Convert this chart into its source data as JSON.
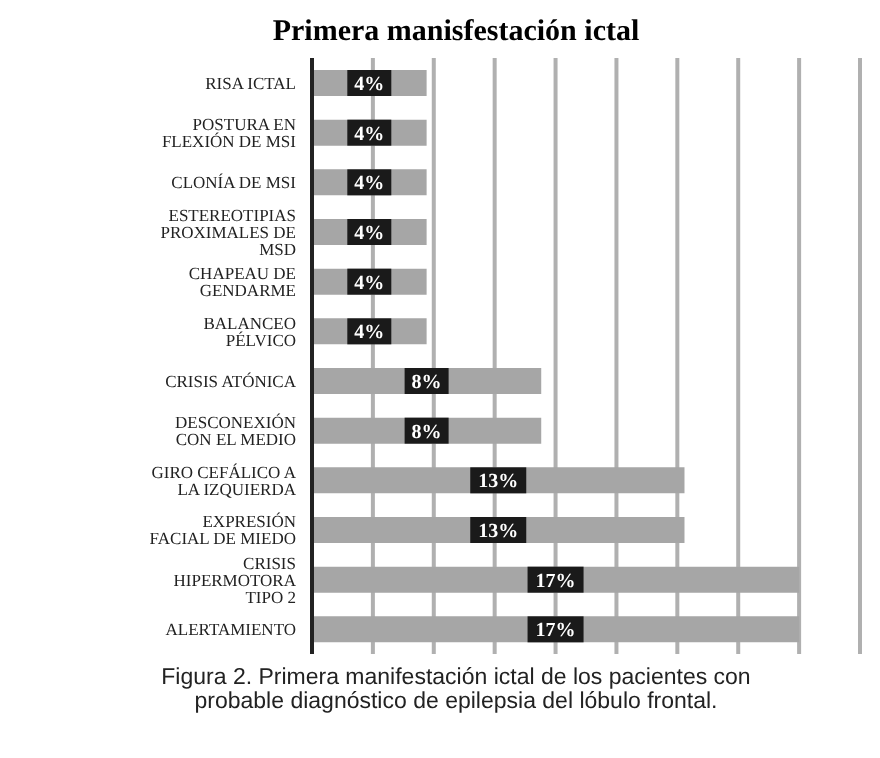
{
  "chart_data": {
    "type": "bar",
    "orientation": "horizontal",
    "title": "Primera manisfestación ictal",
    "categories": [
      "RISA ICTAL",
      "POSTURA EN FLEXIÓN DE MSI",
      "CLONÍA DE MSI",
      "ESTEREOTIPIAS PROXIMALES DE MSD",
      "CHAPEAU DE GENDARME",
      "BALANCEO PÉLVICO",
      "CRISIS ATÓNICA",
      "DESCONEXIÓN CON EL MEDIO",
      "GIRO CEFÁLICO A LA IZQUIERDA",
      "EXPRESIÓN FACIAL DE MIEDO",
      "CRISIS HIPERMOTORA TIPO 2",
      "ALERTAMIENTO"
    ],
    "values": [
      4,
      4,
      4,
      4,
      4,
      4,
      8,
      8,
      13,
      13,
      17,
      17
    ],
    "value_labels": [
      "4%",
      "4%",
      "4%",
      "4%",
      "4%",
      "4%",
      "8%",
      "8%",
      "13%",
      "13%",
      "17%",
      "17%"
    ],
    "color": "#a6a6a6",
    "xlim": [
      0,
      19.125
    ],
    "xticks": [
      {
        "value": 2.125,
        "label": null
      },
      {
        "value": 4.25,
        "label": null
      },
      {
        "value": 6.375,
        "label": null
      },
      {
        "value": 8.5,
        "label": null
      },
      {
        "value": 10.625,
        "label": null
      },
      {
        "value": 12.75,
        "label": null
      },
      {
        "value": 14.875,
        "label": null
      },
      {
        "value": 17,
        "label": null
      },
      {
        "value": 19.125,
        "label": null
      }
    ],
    "grid": "x",
    "tick_labels": "y",
    "annotations": [
      "Figura 2. Primera manifestación ictal de los pacientes con probable diagnóstico de epilepsia del lóbulo frontal."
    ]
  }
}
